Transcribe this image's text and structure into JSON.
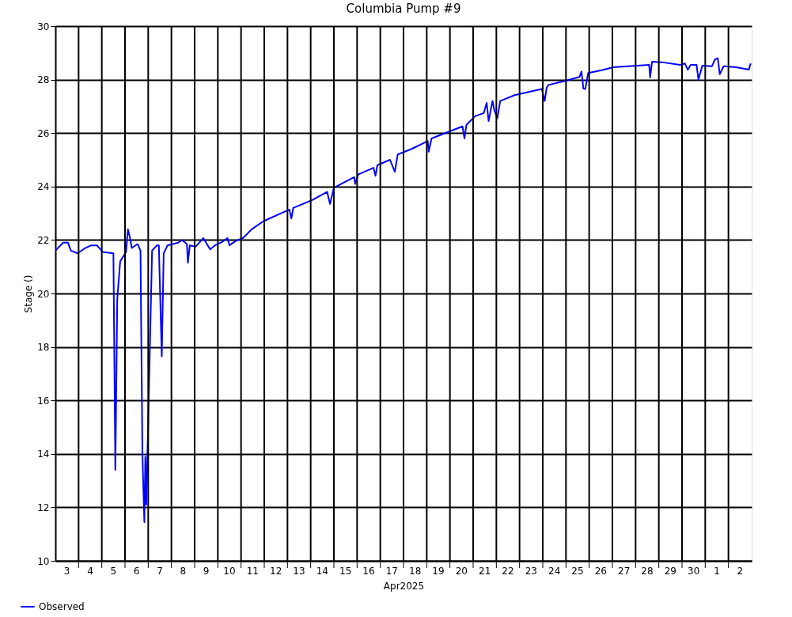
{
  "chart_data": {
    "type": "line",
    "title": "Columbia Pump #9",
    "xlabel": "Apr2025",
    "ylabel": "Stage ()",
    "xlim": [
      "2025-04-03",
      "2025-05-03"
    ],
    "ylim": [
      10,
      30
    ],
    "yticks": [
      10,
      12,
      14,
      16,
      18,
      20,
      22,
      24,
      26,
      28,
      30
    ],
    "xticks": [
      {
        "value": "2025-04-03T12:00",
        "label": "3"
      },
      {
        "value": "2025-04-04T12:00",
        "label": "4"
      },
      {
        "value": "2025-04-05T12:00",
        "label": "5"
      },
      {
        "value": "2025-04-06T12:00",
        "label": "6"
      },
      {
        "value": "2025-04-07T12:00",
        "label": "7"
      },
      {
        "value": "2025-04-08T12:00",
        "label": "8"
      },
      {
        "value": "2025-04-09T12:00",
        "label": "9"
      },
      {
        "value": "2025-04-10T12:00",
        "label": "10"
      },
      {
        "value": "2025-04-11T12:00",
        "label": "11"
      },
      {
        "value": "2025-04-12T12:00",
        "label": "12"
      },
      {
        "value": "2025-04-13T12:00",
        "label": "13"
      },
      {
        "value": "2025-04-14T12:00",
        "label": "14"
      },
      {
        "value": "2025-04-15T12:00",
        "label": "15"
      },
      {
        "value": "2025-04-16T12:00",
        "label": "16"
      },
      {
        "value": "2025-04-17T12:00",
        "label": "17"
      },
      {
        "value": "2025-04-18T12:00",
        "label": "18"
      },
      {
        "value": "2025-04-19T12:00",
        "label": "19"
      },
      {
        "value": "2025-04-20T12:00",
        "label": "20"
      },
      {
        "value": "2025-04-21T12:00",
        "label": "21"
      },
      {
        "value": "2025-04-22T12:00",
        "label": "22"
      },
      {
        "value": "2025-04-23T12:00",
        "label": "23"
      },
      {
        "value": "2025-04-24T12:00",
        "label": "24"
      },
      {
        "value": "2025-04-25T12:00",
        "label": "25"
      },
      {
        "value": "2025-04-26T12:00",
        "label": "26"
      },
      {
        "value": "2025-04-27T12:00",
        "label": "27"
      },
      {
        "value": "2025-04-28T12:00",
        "label": "28"
      },
      {
        "value": "2025-04-29T12:00",
        "label": "29"
      },
      {
        "value": "2025-04-30T12:00",
        "label": "30"
      },
      {
        "value": "2025-05-01T12:00",
        "label": "1"
      },
      {
        "value": "2025-05-02T12:00",
        "label": "2"
      },
      {
        "value": "2025-04-04",
        "label": null
      },
      {
        "value": "2025-04-05",
        "label": null
      },
      {
        "value": "2025-04-06",
        "label": null
      },
      {
        "value": "2025-04-07",
        "label": null
      },
      {
        "value": "2025-04-08",
        "label": null
      },
      {
        "value": "2025-04-09",
        "label": null
      },
      {
        "value": "2025-04-10",
        "label": null
      },
      {
        "value": "2025-04-11",
        "label": null
      },
      {
        "value": "2025-04-12",
        "label": null
      },
      {
        "value": "2025-04-13",
        "label": null
      },
      {
        "value": "2025-04-14",
        "label": null
      },
      {
        "value": "2025-04-15",
        "label": null
      },
      {
        "value": "2025-04-16",
        "label": null
      },
      {
        "value": "2025-04-17",
        "label": null
      },
      {
        "value": "2025-04-18",
        "label": null
      },
      {
        "value": "2025-04-19",
        "label": null
      },
      {
        "value": "2025-04-20",
        "label": null
      },
      {
        "value": "2025-04-21",
        "label": null
      },
      {
        "value": "2025-04-22",
        "label": null
      },
      {
        "value": "2025-04-23",
        "label": null
      },
      {
        "value": "2025-04-24",
        "label": null
      },
      {
        "value": "2025-04-25",
        "label": null
      },
      {
        "value": "2025-04-26",
        "label": null
      },
      {
        "value": "2025-04-27",
        "label": null
      },
      {
        "value": "2025-04-28",
        "label": null
      },
      {
        "value": "2025-04-29",
        "label": null
      },
      {
        "value": "2025-04-30",
        "label": null
      },
      {
        "value": "2025-05-01",
        "label": null
      },
      {
        "value": "2025-05-02",
        "label": null
      }
    ],
    "grid": true,
    "legend": "bottom left",
    "series": [
      {
        "name": "Observed",
        "color": "#0000ff",
        "x": [
          "2025-04-03T00:00",
          "2025-04-03T08:00",
          "2025-04-03T13:00",
          "2025-04-03T16:00",
          "2025-04-03T23:00",
          "2025-04-04T07:00",
          "2025-04-04T13:00",
          "2025-04-04T19:00",
          "2025-04-05T01:00",
          "2025-04-05T12:00",
          "2025-04-05T14:00",
          "2025-04-05T16:00",
          "2025-04-05T19:00",
          "2025-04-06T01:00",
          "2025-04-06T03:00",
          "2025-04-06T05:00",
          "2025-04-06T07:00",
          "2025-04-06T13:00",
          "2025-04-06T16:00",
          "2025-04-06T18:00",
          "2025-04-06T20:00",
          "2025-04-06T21:00",
          "2025-04-06T22:00",
          "2025-04-07T04:00",
          "2025-04-07T09:00",
          "2025-04-07T11:00",
          "2025-04-07T14:00",
          "2025-04-07T16:00",
          "2025-04-07T20:00",
          "2025-04-08T07:00",
          "2025-04-08T11:00",
          "2025-04-08T16:00",
          "2025-04-08T17:00",
          "2025-04-08T19:00",
          "2025-04-09T01:00",
          "2025-04-09T09:00",
          "2025-04-09T16:00",
          "2025-04-09T21:00",
          "2025-04-10T04:00",
          "2025-04-10T10:00",
          "2025-04-10T12:00",
          "2025-04-10T19:00",
          "2025-04-11T02:00",
          "2025-04-11T11:00",
          "2025-04-11T23:00",
          "2025-04-13T02:00",
          "2025-04-13T04:00",
          "2025-04-13T06:00",
          "2025-04-14T02:00",
          "2025-04-14T17:00",
          "2025-04-14T20:00",
          "2025-04-15T00:00",
          "2025-04-15T21:00",
          "2025-04-15T22:00",
          "2025-04-16T01:00",
          "2025-04-16T17:00",
          "2025-04-16T19:00",
          "2025-04-16T21:00",
          "2025-04-17T10:00",
          "2025-04-17T15:00",
          "2025-04-17T18:00",
          "2025-04-18T08:00",
          "2025-04-19T01:00",
          "2025-04-19T02:00",
          "2025-04-19T05:00",
          "2025-04-20T13:00",
          "2025-04-20T15:00",
          "2025-04-20T17:00",
          "2025-04-21T02:00",
          "2025-04-21T11:00",
          "2025-04-21T14:00",
          "2025-04-21T16:00",
          "2025-04-21T20:00",
          "2025-04-21T22:00",
          "2025-04-22T01:00",
          "2025-04-22T04:00",
          "2025-04-22T19:00",
          "2025-04-23T23:00",
          "2025-04-24T02:00",
          "2025-04-24T04:00",
          "2025-04-24T06:00",
          "2025-04-25T00:00",
          "2025-04-25T14:00",
          "2025-04-25T16:00",
          "2025-04-25T18:00",
          "2025-04-25T20:00",
          "2025-04-25T23:00",
          "2025-04-26T13:00",
          "2025-04-27T01:00",
          "2025-04-28T14:00",
          "2025-04-28T15:00",
          "2025-04-28T17:00",
          "2025-04-29T03:00",
          "2025-04-29T22:00",
          "2025-04-30T03:00",
          "2025-04-30T06:00",
          "2025-04-30T09:00",
          "2025-04-30T15:00",
          "2025-04-30T17:00",
          "2025-04-30T21:00",
          "2025-05-01T07:00",
          "2025-05-01T10:00",
          "2025-05-01T13:00",
          "2025-05-01T15:00",
          "2025-05-01T19:00",
          "2025-05-02T08:00",
          "2025-05-02T21:00",
          "2025-05-02T23:00"
        ],
        "values": [
          21.6,
          21.9,
          21.9,
          21.6,
          21.5,
          21.7,
          21.8,
          21.8,
          21.55,
          21.5,
          13.4,
          19.8,
          21.2,
          21.55,
          22.4,
          22.1,
          21.7,
          21.85,
          21.6,
          14.0,
          11.45,
          13.9,
          12.1,
          21.6,
          21.8,
          21.8,
          17.65,
          21.5,
          21.8,
          21.9,
          22.0,
          21.85,
          21.15,
          21.8,
          21.75,
          22.07,
          21.65,
          21.8,
          21.92,
          22.07,
          21.8,
          21.98,
          22.07,
          22.4,
          22.7,
          23.14,
          22.8,
          23.2,
          23.5,
          23.8,
          23.35,
          23.95,
          24.35,
          24.1,
          24.45,
          24.7,
          24.4,
          24.8,
          25.0,
          24.55,
          25.2,
          25.4,
          25.7,
          25.3,
          25.8,
          26.25,
          25.8,
          26.3,
          26.63,
          26.75,
          27.13,
          26.45,
          27.2,
          26.85,
          26.55,
          27.2,
          27.42,
          27.65,
          27.2,
          27.7,
          27.8,
          27.96,
          28.1,
          28.3,
          27.66,
          27.65,
          28.25,
          28.35,
          28.46,
          28.55,
          28.08,
          28.67,
          28.65,
          28.55,
          28.6,
          28.37,
          28.55,
          28.55,
          28.0,
          28.52,
          28.5,
          28.75,
          28.8,
          28.2,
          28.5,
          28.46,
          28.37,
          28.6
        ]
      }
    ]
  }
}
